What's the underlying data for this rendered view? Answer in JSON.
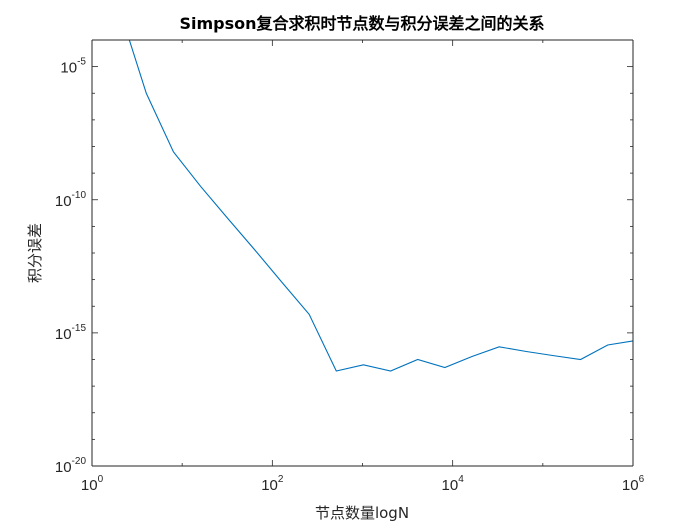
{
  "chart_data": {
    "type": "line",
    "title": "Simpson复合求积时节点数与积分误差之间的关系",
    "xlabel": "节点数量logN",
    "ylabel": "积分误差",
    "xscale": "log",
    "yscale": "log",
    "xlim": [
      1,
      1000000
    ],
    "ylim": [
      1e-20,
      0.0001
    ],
    "grid": false,
    "box": true,
    "x_ticks": [
      {
        "base": "10",
        "exp": "0"
      },
      {
        "base": "10",
        "exp": "2"
      },
      {
        "base": "10",
        "exp": "4"
      },
      {
        "base": "10",
        "exp": "6"
      }
    ],
    "x_tick_values": [
      1,
      100,
      10000,
      1000000
    ],
    "y_ticks": [
      {
        "base": "10",
        "exp": "-5"
      },
      {
        "base": "10",
        "exp": "-10"
      },
      {
        "base": "10",
        "exp": "-15"
      },
      {
        "base": "10",
        "exp": "-20"
      }
    ],
    "y_tick_values": [
      1e-05,
      1e-10,
      1e-15,
      1e-20
    ],
    "series": [
      {
        "color": "#0072BD",
        "x": [
          2,
          4,
          8,
          16,
          32,
          64,
          128,
          256,
          512,
          1024,
          2048,
          4096,
          8192,
          16384,
          32768,
          65536,
          131072,
          262144,
          524288,
          1000000
        ],
        "y": [
          0.0016,
          1e-06,
          6.3e-09,
          3.2e-10,
          2e-11,
          1.3e-12,
          7.9e-14,
          5e-15,
          3.7e-17,
          6.3e-17,
          3.7e-17,
          1e-16,
          5e-17,
          1.3e-16,
          3e-16,
          2e-16,
          1.4e-16,
          1e-16,
          3.5e-16,
          5e-16
        ]
      }
    ]
  }
}
